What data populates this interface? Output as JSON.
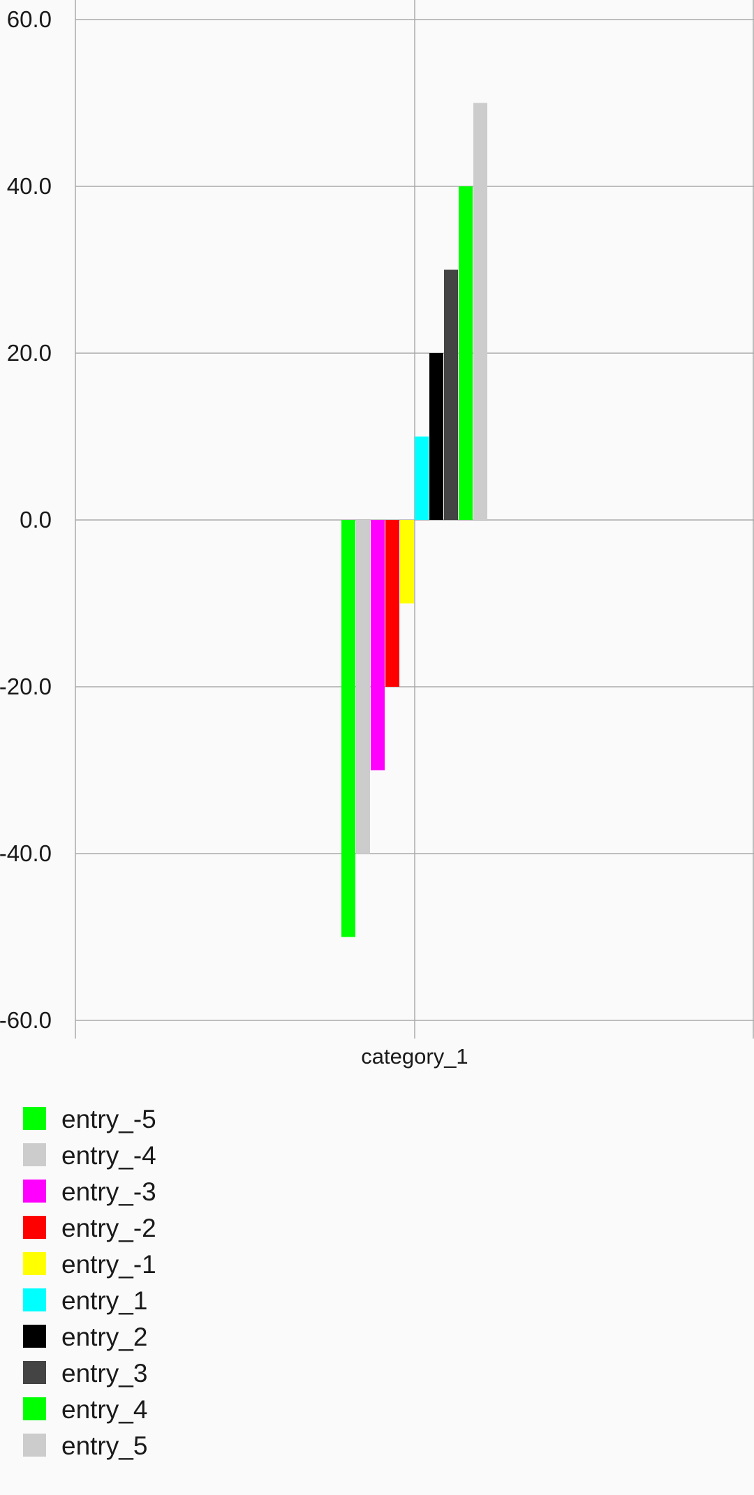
{
  "chart_data": {
    "type": "bar",
    "title": "",
    "xlabel": "",
    "ylabel": "",
    "categories": [
      "category_1"
    ],
    "ylim": [
      -60,
      60
    ],
    "y_ticks": [
      "60.0",
      "40.0",
      "20.0",
      "0.0",
      "-20.0",
      "-40.0",
      "-60.0"
    ],
    "y_tick_values": [
      60,
      40,
      20,
      0,
      -20,
      -40,
      -60
    ],
    "grid": true,
    "legend_position": "bottom-left",
    "series": [
      {
        "name": "entry_-5",
        "values": [
          -50
        ],
        "color": "#00ff00"
      },
      {
        "name": "entry_-4",
        "values": [
          -40
        ],
        "color": "#cccccc"
      },
      {
        "name": "entry_-3",
        "values": [
          -30
        ],
        "color": "#ff00ff"
      },
      {
        "name": "entry_-2",
        "values": [
          -20
        ],
        "color": "#ff0000"
      },
      {
        "name": "entry_-1",
        "values": [
          -10
        ],
        "color": "#ffff00"
      },
      {
        "name": "entry_1",
        "values": [
          10
        ],
        "color": "#00ffff"
      },
      {
        "name": "entry_2",
        "values": [
          20
        ],
        "color": "#000000"
      },
      {
        "name": "entry_3",
        "values": [
          30
        ],
        "color": "#444444"
      },
      {
        "name": "entry_4",
        "values": [
          40
        ],
        "color": "#00ff00"
      },
      {
        "name": "entry_5",
        "values": [
          50
        ],
        "color": "#cccccc"
      }
    ]
  }
}
